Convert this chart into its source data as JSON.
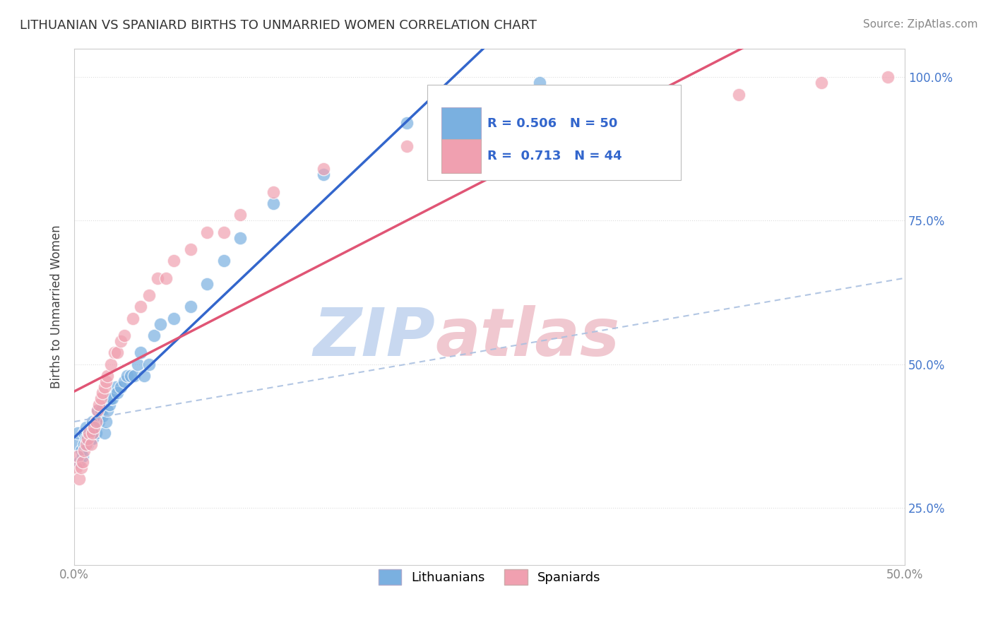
{
  "title": "LITHUANIAN VS SPANIARD BIRTHS TO UNMARRIED WOMEN CORRELATION CHART",
  "source": "Source: ZipAtlas.com",
  "ylabel": "Births to Unmarried Women",
  "xlim": [
    0.0,
    0.5
  ],
  "ylim": [
    0.15,
    1.05
  ],
  "R_lith": 0.506,
  "N_lith": 50,
  "R_span": 0.713,
  "N_span": 44,
  "blue_color": "#7ab0e0",
  "pink_color": "#f0a0b0",
  "blue_line_color": "#3366cc",
  "pink_line_color": "#e05575",
  "dashed_line_color": "#aac0e0",
  "background_color": "#ffffff",
  "grid_color": "#dddddd",
  "lith_x": [
    0.001,
    0.002,
    0.003,
    0.004,
    0.005,
    0.006,
    0.006,
    0.007,
    0.007,
    0.008,
    0.009,
    0.01,
    0.01,
    0.011,
    0.011,
    0.012,
    0.013,
    0.013,
    0.014,
    0.015,
    0.016,
    0.017,
    0.018,
    0.019,
    0.02,
    0.021,
    0.022,
    0.023,
    0.025,
    0.026,
    0.028,
    0.03,
    0.032,
    0.034,
    0.036,
    0.038,
    0.04,
    0.042,
    0.045,
    0.048,
    0.052,
    0.06,
    0.07,
    0.08,
    0.09,
    0.1,
    0.12,
    0.15,
    0.2,
    0.28
  ],
  "lith_y": [
    0.36,
    0.38,
    0.33,
    0.35,
    0.34,
    0.36,
    0.38,
    0.37,
    0.39,
    0.36,
    0.38,
    0.37,
    0.38,
    0.4,
    0.37,
    0.39,
    0.4,
    0.38,
    0.42,
    0.4,
    0.42,
    0.41,
    0.38,
    0.4,
    0.42,
    0.43,
    0.44,
    0.44,
    0.46,
    0.45,
    0.46,
    0.47,
    0.48,
    0.48,
    0.48,
    0.5,
    0.52,
    0.48,
    0.5,
    0.55,
    0.57,
    0.58,
    0.6,
    0.64,
    0.68,
    0.72,
    0.78,
    0.83,
    0.92,
    0.99
  ],
  "span_x": [
    0.001,
    0.002,
    0.003,
    0.004,
    0.005,
    0.006,
    0.007,
    0.008,
    0.009,
    0.01,
    0.011,
    0.012,
    0.013,
    0.014,
    0.015,
    0.016,
    0.017,
    0.018,
    0.019,
    0.02,
    0.022,
    0.024,
    0.026,
    0.028,
    0.03,
    0.035,
    0.04,
    0.045,
    0.05,
    0.055,
    0.06,
    0.07,
    0.08,
    0.09,
    0.1,
    0.12,
    0.15,
    0.2,
    0.25,
    0.3,
    0.35,
    0.4,
    0.45,
    0.49
  ],
  "span_y": [
    0.32,
    0.34,
    0.3,
    0.32,
    0.33,
    0.35,
    0.36,
    0.37,
    0.38,
    0.36,
    0.38,
    0.39,
    0.4,
    0.42,
    0.43,
    0.44,
    0.45,
    0.46,
    0.47,
    0.48,
    0.5,
    0.52,
    0.52,
    0.54,
    0.55,
    0.58,
    0.6,
    0.62,
    0.65,
    0.65,
    0.68,
    0.7,
    0.73,
    0.73,
    0.76,
    0.8,
    0.84,
    0.88,
    0.92,
    0.94,
    0.96,
    0.97,
    0.99,
    1.0
  ]
}
